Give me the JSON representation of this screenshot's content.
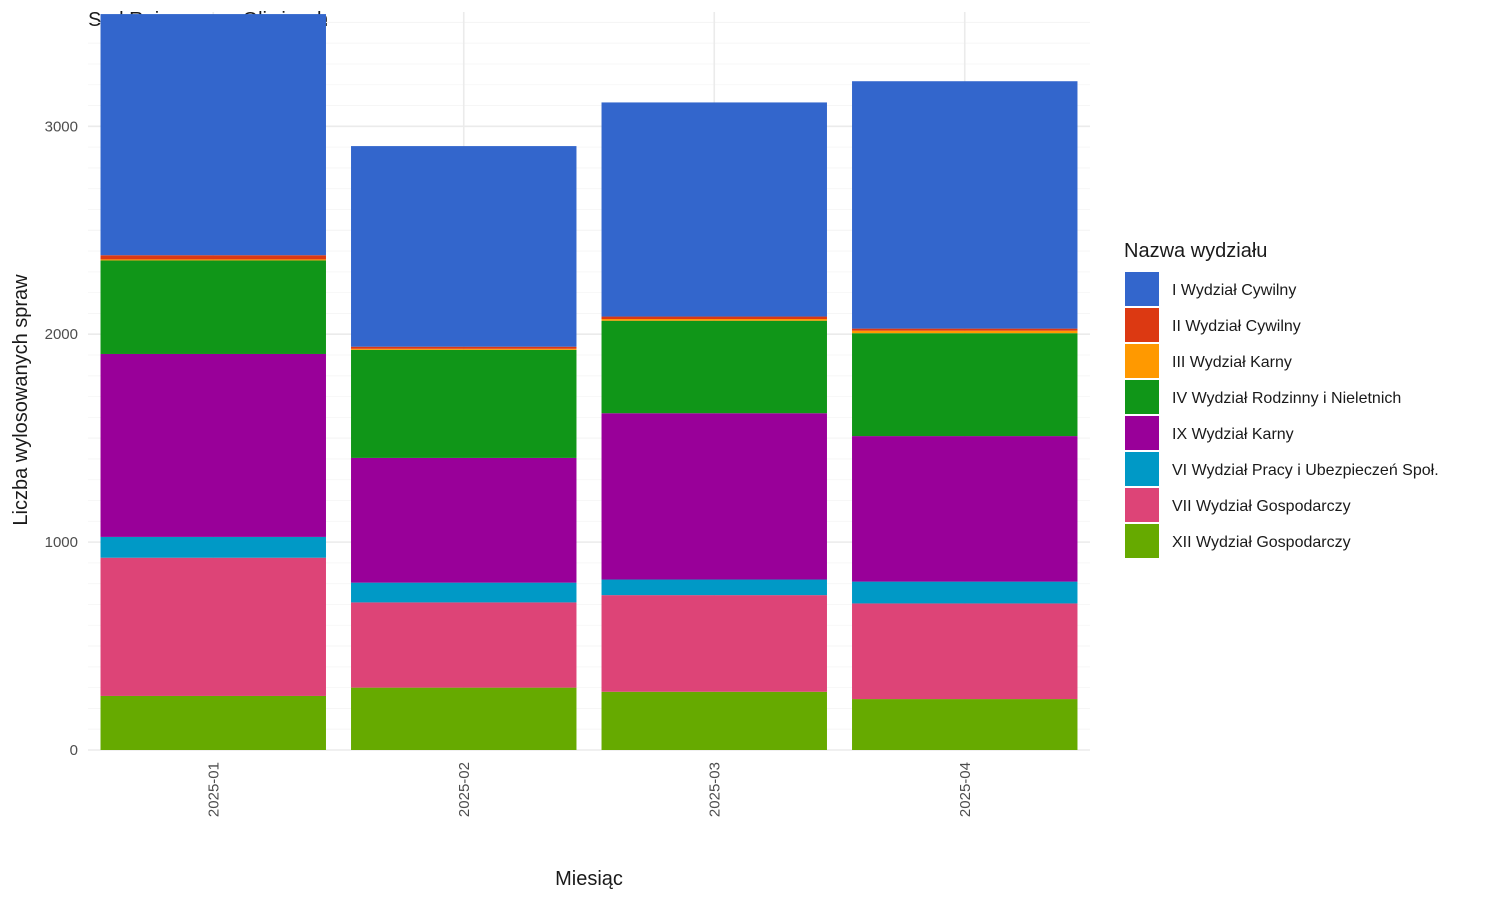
{
  "chart_data": {
    "type": "bar",
    "stacked": true,
    "title": "Sąd Rejonowy w Gliwicach",
    "xlabel": "Miesiąc",
    "ylabel": "Liczba wylosowanych spraw",
    "categories": [
      "2025-01",
      "2025-02",
      "2025-03",
      "2025-04"
    ],
    "ylim": [
      0,
      3550
    ],
    "yticks": [
      0,
      1000,
      2000,
      3000
    ],
    "grid": true,
    "legend_title": "Nazwa wydziału",
    "legend_position": "right",
    "series": [
      {
        "name": "XII Wydział Gospodarczy",
        "color": "#66AA00",
        "values": [
          260,
          300,
          280,
          245
        ]
      },
      {
        "name": "VII Wydział Gospodarczy",
        "color": "#DD4477",
        "values": [
          665,
          410,
          465,
          460
        ]
      },
      {
        "name": "VI Wydział Pracy i Ubezpieczeń Społ.",
        "color": "#0099C6",
        "values": [
          100,
          95,
          75,
          105
        ]
      },
      {
        "name": "IX Wydział Karny",
        "color": "#990099",
        "values": [
          880,
          600,
          800,
          700
        ]
      },
      {
        "name": "IV Wydział Rodzinny i Nieletnich",
        "color": "#109618",
        "values": [
          450,
          520,
          445,
          495
        ]
      },
      {
        "name": "III Wydział Karny",
        "color": "#FF9900",
        "values": [
          5,
          5,
          8,
          12
        ]
      },
      {
        "name": "II Wydział Cywilny",
        "color": "#DC3912",
        "values": [
          20,
          10,
          12,
          10
        ]
      },
      {
        "name": "I Wydział Cywilny",
        "color": "#3366CC",
        "values": [
          1160,
          965,
          1030,
          1190
        ]
      }
    ],
    "legend_order": [
      "I Wydział Cywilny",
      "II Wydział Cywilny",
      "III Wydział Karny",
      "IV Wydział Rodzinny i Nieletnich",
      "IX Wydział Karny",
      "VI Wydział Pracy i Ubezpieczeń Społ.",
      "VII Wydział Gospodarczy",
      "XII Wydział Gospodarczy"
    ]
  }
}
